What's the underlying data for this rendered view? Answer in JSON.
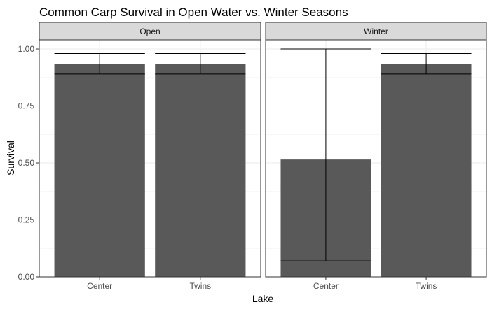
{
  "chart_data": {
    "type": "bar",
    "title": "Common Carp Survival in Open Water vs. Winter Seasons",
    "xlabel": "Lake",
    "ylabel": "Survival",
    "ylim": [
      0,
      1.04
    ],
    "yticks": [
      0,
      0.25,
      0.5,
      0.75,
      1.0
    ],
    "ytick_labels": [
      "0.00",
      "0.25",
      "0.50",
      "0.75",
      "1.00"
    ],
    "grid": true,
    "facets": [
      {
        "label": "Open",
        "categories": [
          "Center",
          "Twins"
        ],
        "values": [
          0.935,
          0.935
        ],
        "error_low": [
          0.89,
          0.89
        ],
        "error_high": [
          0.98,
          0.98
        ]
      },
      {
        "label": "Winter",
        "categories": [
          "Center",
          "Twins"
        ],
        "values": [
          0.515,
          0.935
        ],
        "error_low": [
          0.07,
          0.89
        ],
        "error_high": [
          1.0,
          0.98
        ]
      }
    ],
    "colors": {
      "bar": "#595959",
      "errorbar": "#000000",
      "strip_fill": "#d9d9d9",
      "grid": "#ebebeb",
      "panel_border": "#333333"
    }
  }
}
